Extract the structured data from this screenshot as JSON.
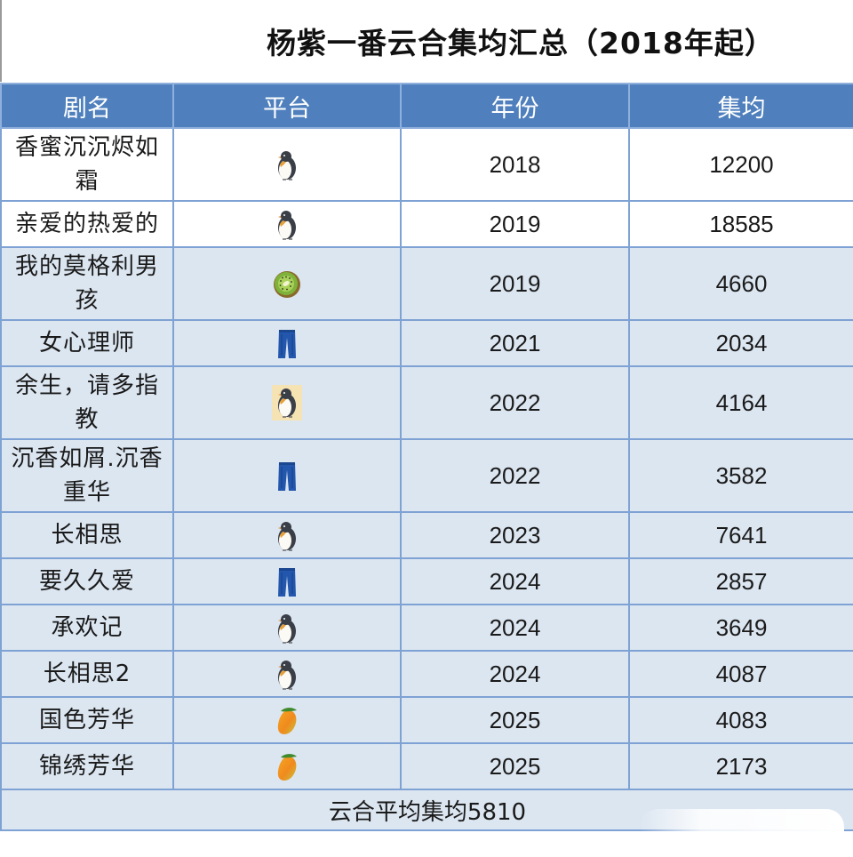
{
  "title": "杨紫一番云合集均汇总（2018年起）",
  "table": {
    "headers": [
      "剧名",
      "平台",
      "年份",
      "集均"
    ],
    "rows": [
      {
        "name": "香蜜沉沉烬如霜",
        "platform": "penguin-icon",
        "platform_label": "腾讯视频",
        "year": "2018",
        "avg": "12200"
      },
      {
        "name": "亲爱的热爱的",
        "platform": "penguin-icon",
        "platform_label": "腾讯视频",
        "year": "2019",
        "avg": "18585"
      },
      {
        "name": "我的莫格利男孩",
        "platform": "kiwi-icon",
        "platform_label": "爱奇艺",
        "year": "2019",
        "avg": "4660"
      },
      {
        "name": "女心理师",
        "platform": "jeans-icon",
        "platform_label": "优酷",
        "year": "2021",
        "avg": "2034"
      },
      {
        "name": "余生，请多指教",
        "platform": "penguin-icon",
        "platform_label": "腾讯视频",
        "year": "2022",
        "avg": "4164"
      },
      {
        "name": "沉香如屑.沉香重华",
        "platform": "jeans-icon",
        "platform_label": "优酷",
        "year": "2022",
        "avg": "3582"
      },
      {
        "name": "长相思",
        "platform": "penguin-icon",
        "platform_label": "腾讯视频",
        "year": "2023",
        "avg": "7641"
      },
      {
        "name": "要久久爱",
        "platform": "jeans-icon",
        "platform_label": "优酷",
        "year": "2024",
        "avg": "2857"
      },
      {
        "name": "承欢记",
        "platform": "penguin-icon",
        "platform_label": "腾讯视频",
        "year": "2024",
        "avg": "3649"
      },
      {
        "name": "长相思2",
        "platform": "penguin-icon",
        "platform_label": "腾讯视频",
        "year": "2024",
        "avg": "4087"
      },
      {
        "name": "国色芳华",
        "platform": "mango-icon",
        "platform_label": "芒果TV",
        "year": "2025",
        "avg": "4083"
      },
      {
        "name": "锦绣芳华",
        "platform": "mango-icon",
        "platform_label": "芒果TV",
        "year": "2025",
        "avg": "2173"
      }
    ],
    "footer": "云合平均集均5810"
  },
  "colors": {
    "header_bg": "#4f80bd",
    "row_bg": "#dce6f1",
    "row_white": "#ffffff",
    "grid_line": "#7fa2d4"
  }
}
